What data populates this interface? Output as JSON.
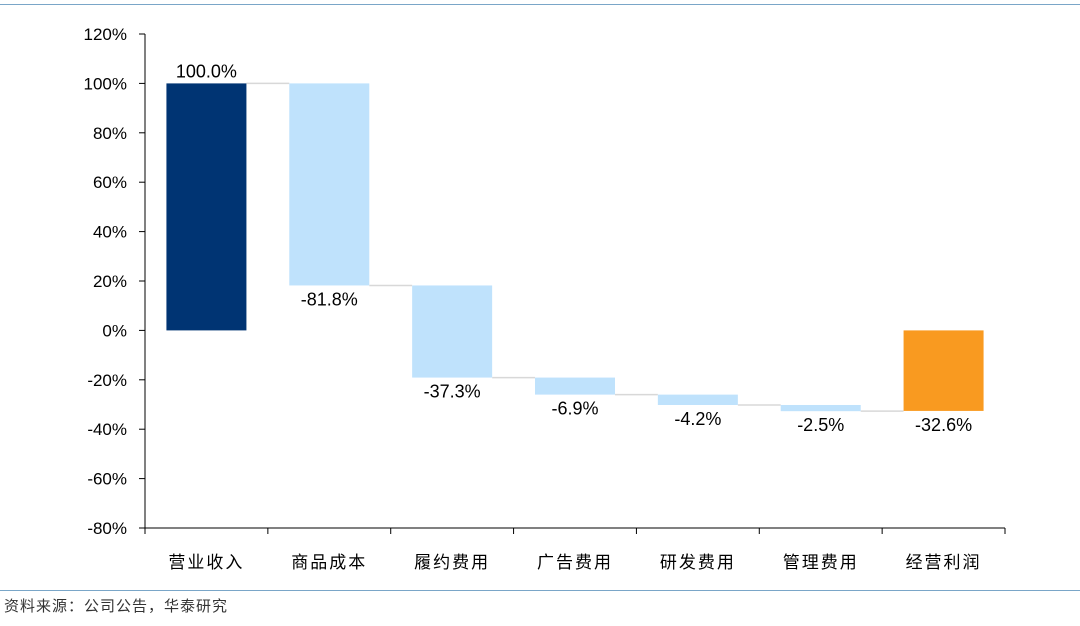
{
  "chart_data": {
    "type": "bar",
    "subtype": "waterfall",
    "categories": [
      "营业收入",
      "商品成本",
      "履约费用",
      "广告费用",
      "研发费用",
      "管理费用",
      "经营利润"
    ],
    "values": [
      100.0,
      -81.8,
      -37.3,
      -6.9,
      -4.2,
      -2.5,
      -32.6
    ],
    "value_labels": [
      "100.0%",
      "-81.8%",
      "-37.3%",
      "-6.9%",
      "-4.2%",
      "-2.5%",
      "-32.6%"
    ],
    "bar_kinds": [
      "total",
      "delta",
      "delta",
      "delta",
      "delta",
      "delta",
      "total"
    ],
    "ylim": [
      -80,
      120
    ],
    "yticks": [
      120,
      100,
      80,
      60,
      40,
      20,
      0,
      -20,
      -40,
      -60,
      -80
    ],
    "ytick_labels": [
      "120%",
      "100%",
      "80%",
      "60%",
      "40%",
      "20%",
      "0%",
      "-20%",
      "-40%",
      "-60%",
      "-80%"
    ],
    "colors": {
      "start_total": "#003473",
      "delta": "#bfe2fc",
      "end_total": "#f99a20",
      "connector": "#d8d8d8"
    },
    "grid": false,
    "legend": "none"
  },
  "footer": {
    "source": "资料来源：公司公告，华泰研究"
  }
}
